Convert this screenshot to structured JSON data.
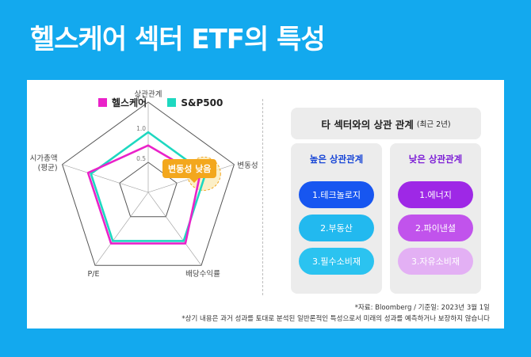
{
  "title": "헬스케어 섹터 ETF의 특성",
  "chart_data": {
    "type": "radar",
    "axes": [
      "상관관계",
      "변동성",
      "배당수익률",
      "P/E",
      "시가총액\n(평균)"
    ],
    "tick_values": [
      0.5,
      1.0,
      1.5
    ],
    "tick_labels": [
      "0.5",
      "1.0",
      "1.5"
    ],
    "range": [
      0,
      1.5
    ],
    "series": [
      {
        "name": "헬스케어",
        "color": "#ea22c9",
        "values": [
          0.78,
          0.9,
          1.05,
          1.05,
          1.05
        ]
      },
      {
        "name": "S&P500",
        "color": "#1ed8c0",
        "values": [
          1.0,
          1.0,
          1.0,
          1.0,
          1.0
        ]
      }
    ],
    "legend_position": "top",
    "annotation": "변동성 낮음"
  },
  "legend": {
    "healthcare": {
      "label": "헬스케어",
      "color": "#ea22c9"
    },
    "sp500": {
      "label": "S&P500",
      "color": "#1ed8c0"
    }
  },
  "correlation": {
    "title": "타 섹터와의 상관 관계",
    "subtitle": "(최근 2년)",
    "high": {
      "label": "높은 상관관계",
      "color": "#1745d6",
      "items": [
        {
          "label": "1.테크놀로지",
          "color": "#1756f0"
        },
        {
          "label": "2.부동산",
          "color": "#22b9ef"
        },
        {
          "label": "3.필수소비재",
          "color": "#2bc3f0"
        }
      ]
    },
    "low": {
      "label": "낮은 상관관계",
      "color": "#7d1fd6",
      "items": [
        {
          "label": "1.에너지",
          "color": "#9e28e6"
        },
        {
          "label": "2.파이낸셜",
          "color": "#c153ec"
        },
        {
          "label": "3.자유소비재",
          "color": "#e3b0f4"
        }
      ]
    }
  },
  "source": "*자료: Bloomberg / 기준일: 2023년 3월 1일",
  "disclaimer": "*상기 내용은 과거 성과를 토대로 분석된 일반론적인 특성으로서 미래의 성과를 예측하거나 보장하지 않습니다"
}
